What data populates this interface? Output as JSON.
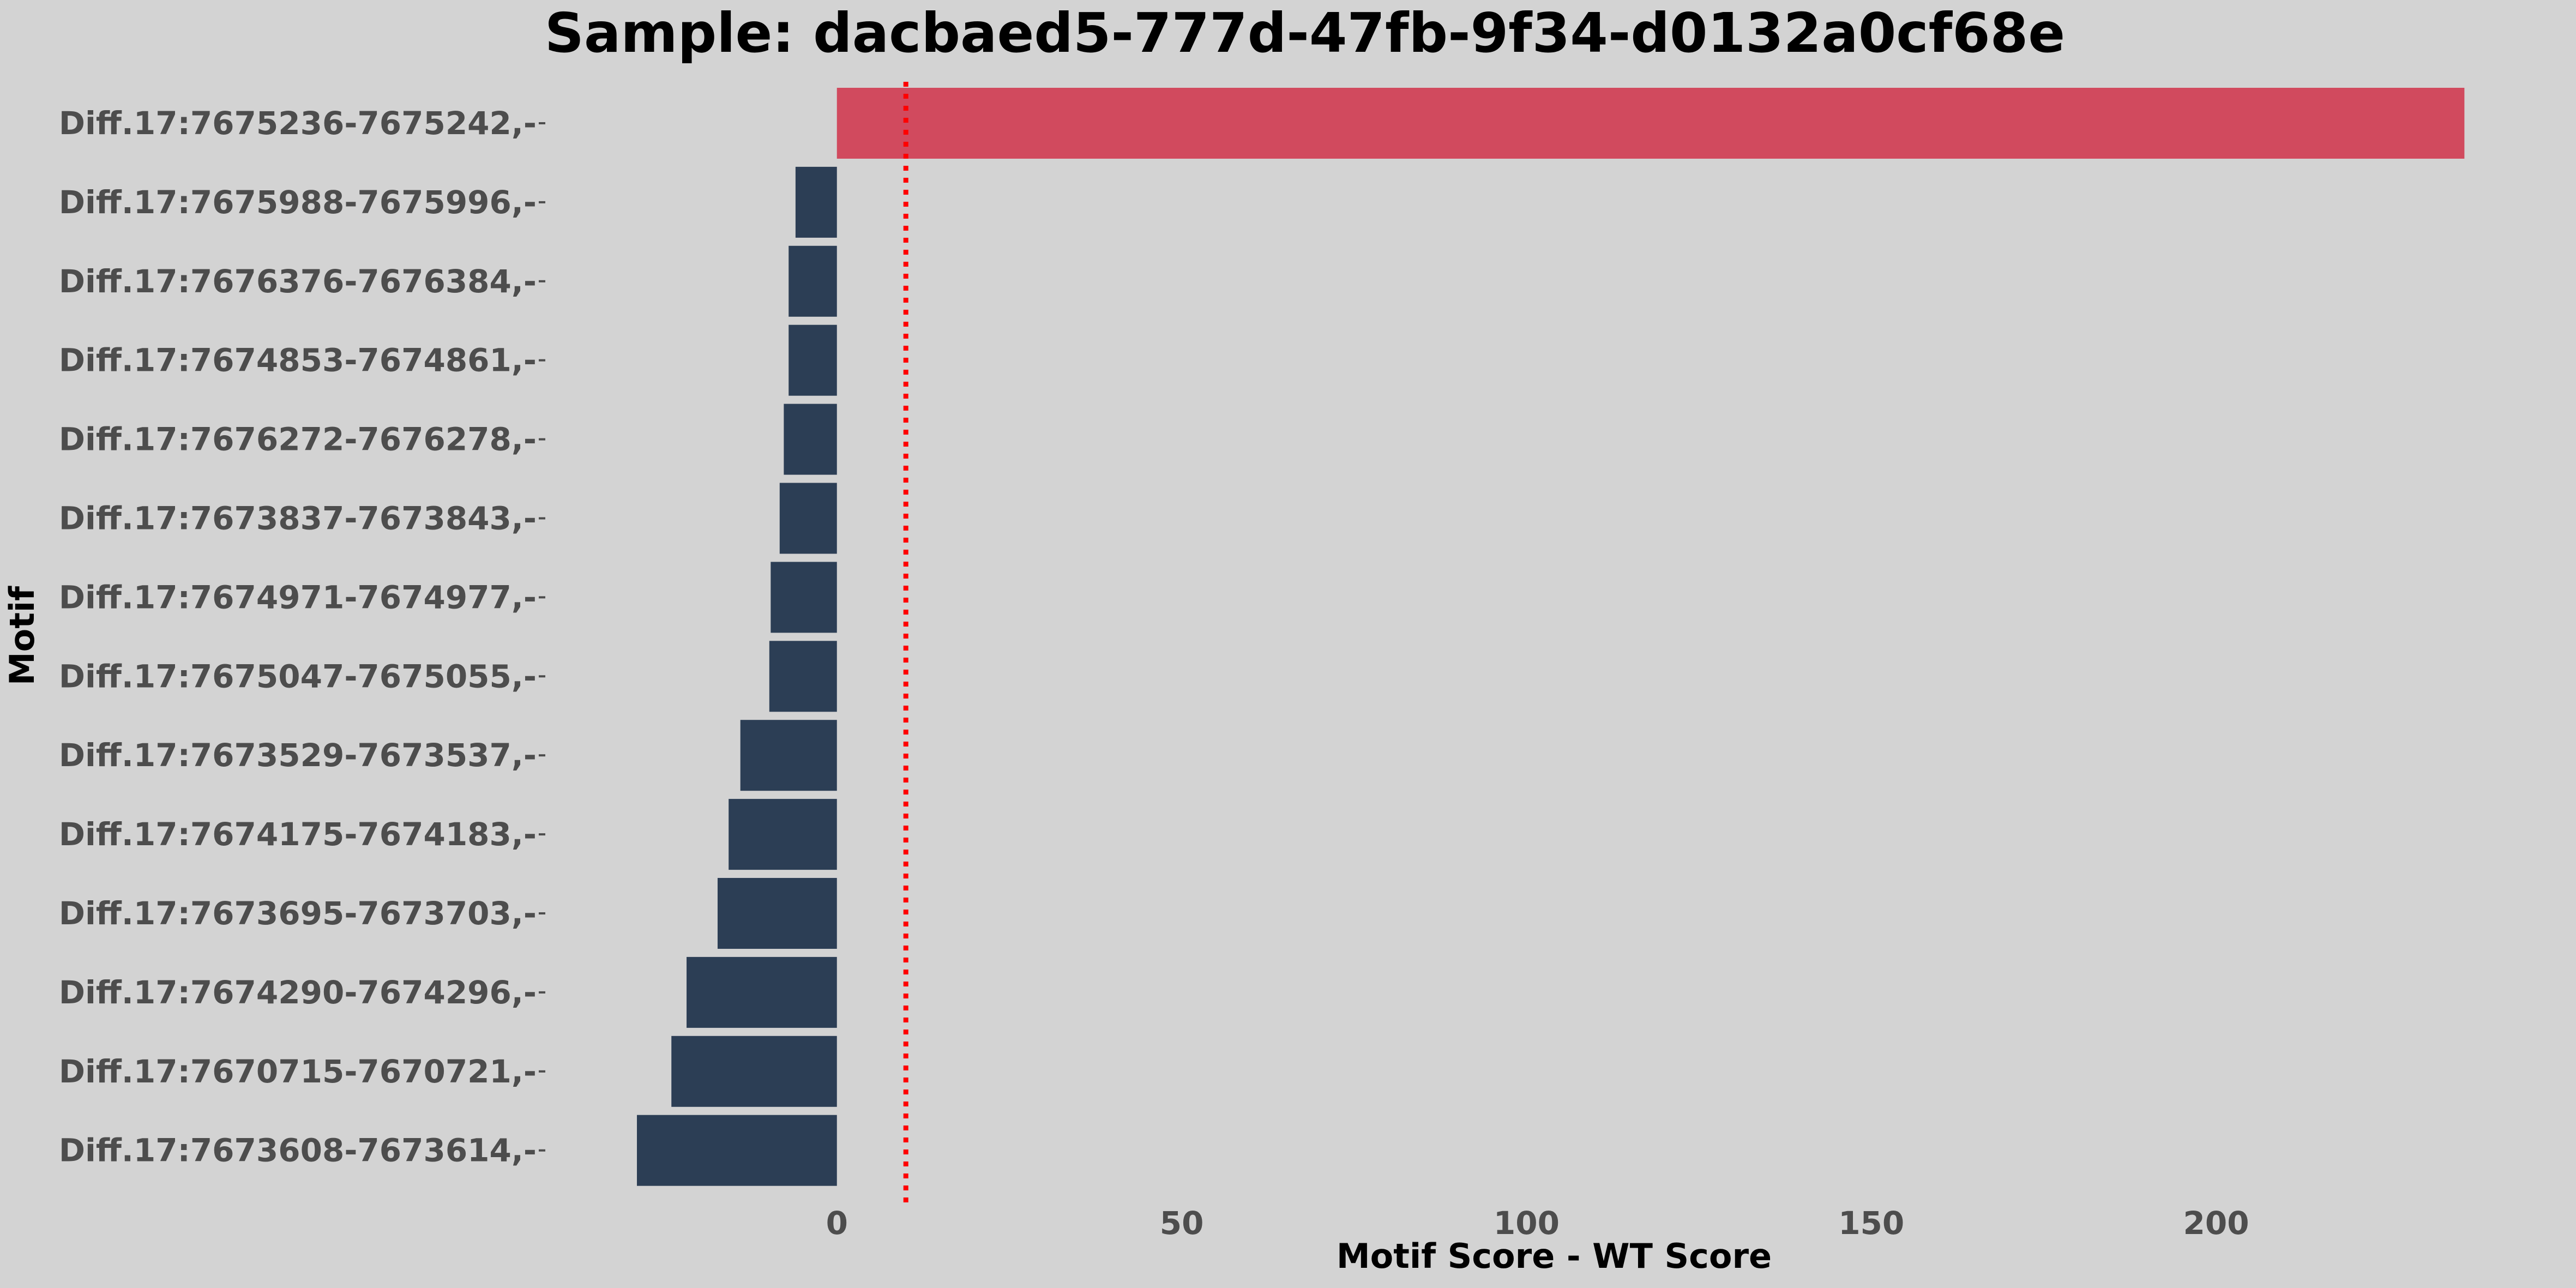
{
  "chart_data": {
    "type": "bar",
    "orientation": "horizontal",
    "title": "Sample: dacbaed5-777d-47fb-9f34-d0132a0cf68e",
    "xlabel": "Motif Score - WT Score",
    "ylabel": "Motif",
    "xlim": [
      -29,
      237
    ],
    "x_ticks": [
      0,
      50,
      100,
      150,
      200
    ],
    "threshold_line": 10,
    "grid": false,
    "legend": "none",
    "colors": {
      "background": "#d3d3d3",
      "positive_bar": "#d14a5e",
      "negative_bar": "#2c3e55",
      "threshold_line": "#ff0000"
    },
    "categories": [
      "Diff.17:7675236-7675242,-",
      "Diff.17:7675988-7675996,-",
      "Diff.17:7676376-7676384,-",
      "Diff.17:7674853-7674861,-",
      "Diff.17:7676272-7676278,-",
      "Diff.17:7673837-7673843,-",
      "Diff.17:7674971-7674977,-",
      "Diff.17:7675047-7675055,-",
      "Diff.17:7673529-7673537,-",
      "Diff.17:7674175-7674183,-",
      "Diff.17:7673695-7673703,-",
      "Diff.17:7674290-7674296,-",
      "Diff.17:7670715-7670721,-",
      "Diff.17:7673608-7673614,-"
    ],
    "values": [
      236,
      -6,
      -7,
      -7,
      -7.7,
      -8.3,
      -9.6,
      -9.8,
      -14,
      -15.7,
      -17.3,
      -21.8,
      -24,
      -29
    ]
  }
}
